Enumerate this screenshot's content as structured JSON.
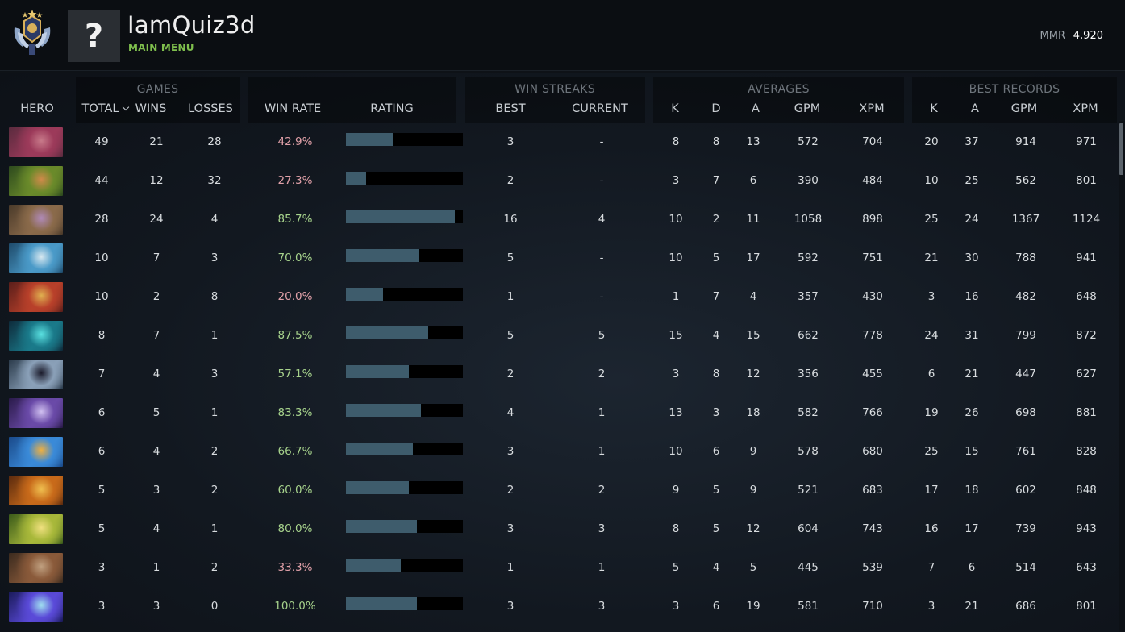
{
  "header": {
    "player_name": "IamQuiz3d",
    "menu_link": "MAIN MENU",
    "avatar_glyph": "?",
    "mmr_label": "MMR",
    "mmr_value": "4,920"
  },
  "groups": {
    "games": "GAMES",
    "win_streaks": "WIN STREAKS",
    "averages": "AVERAGES",
    "best_records": "BEST RECORDS"
  },
  "columns": {
    "hero": "HERO",
    "total": "TOTAL",
    "wins": "WINS",
    "losses": "LOSSES",
    "win_rate": "WIN RATE",
    "rating": "RATING",
    "best": "BEST",
    "current": "CURRENT",
    "avg_k": "K",
    "avg_d": "D",
    "avg_a": "A",
    "avg_gpm": "GPM",
    "avg_xpm": "XPM",
    "best_k": "K",
    "best_a": "A",
    "best_gpm": "GPM",
    "best_xpm": "XPM"
  },
  "sort_icon": "chevron-down-icon",
  "colors": {
    "win_rate_good": "#a7d38c",
    "win_rate_bad": "#e0a0a8",
    "rating_bar": "#3e5c6c",
    "menu_link": "#7fbf4d"
  },
  "rows": [
    {
      "hero_icon": "hero-portrait-1",
      "palette": [
        "#5a2b3e",
        "#9c3a5a",
        "#c87a8a"
      ],
      "total": "49",
      "wins": "21",
      "losses": "28",
      "win_rate": "42.9%",
      "rating": 0.4,
      "good": false,
      "best": "3",
      "current": "-",
      "k": "8",
      "d": "8",
      "a": "13",
      "gpm": "572",
      "xpm": "704",
      "bk": "20",
      "ba": "37",
      "bgpm": "914",
      "bxpm": "971"
    },
    {
      "hero_icon": "hero-portrait-2",
      "palette": [
        "#2d4a1e",
        "#6a8a2a",
        "#d08a4a"
      ],
      "total": "44",
      "wins": "12",
      "losses": "32",
      "win_rate": "27.3%",
      "rating": 0.17,
      "good": false,
      "best": "2",
      "current": "-",
      "k": "3",
      "d": "7",
      "a": "6",
      "gpm": "390",
      "xpm": "484",
      "bk": "10",
      "ba": "25",
      "bgpm": "562",
      "bxpm": "801"
    },
    {
      "hero_icon": "hero-portrait-3",
      "palette": [
        "#4a3a2a",
        "#8a6a4a",
        "#b08ab8"
      ],
      "total": "28",
      "wins": "24",
      "losses": "4",
      "win_rate": "85.7%",
      "rating": 0.93,
      "good": true,
      "best": "16",
      "current": "4",
      "k": "10",
      "d": "2",
      "a": "11",
      "gpm": "1058",
      "xpm": "898",
      "bk": "25",
      "ba": "24",
      "bgpm": "1367",
      "bxpm": "1124"
    },
    {
      "hero_icon": "hero-portrait-4",
      "palette": [
        "#1e4a6a",
        "#4a9ac8",
        "#d8e8f0"
      ],
      "total": "10",
      "wins": "7",
      "losses": "3",
      "win_rate": "70.0%",
      "rating": 0.63,
      "good": true,
      "best": "5",
      "current": "-",
      "k": "10",
      "d": "5",
      "a": "17",
      "gpm": "592",
      "xpm": "751",
      "bk": "21",
      "ba": "30",
      "bgpm": "788",
      "bxpm": "941"
    },
    {
      "hero_icon": "hero-portrait-5",
      "palette": [
        "#5a1e1a",
        "#b8402a",
        "#e0b050"
      ],
      "total": "10",
      "wins": "2",
      "losses": "8",
      "win_rate": "20.0%",
      "rating": 0.32,
      "good": false,
      "best": "1",
      "current": "-",
      "k": "1",
      "d": "7",
      "a": "4",
      "gpm": "357",
      "xpm": "430",
      "bk": "3",
      "ba": "16",
      "bgpm": "482",
      "bxpm": "648"
    },
    {
      "hero_icon": "hero-portrait-6",
      "palette": [
        "#0e2a3a",
        "#1a7a8a",
        "#5ae0e0"
      ],
      "total": "8",
      "wins": "7",
      "losses": "1",
      "win_rate": "87.5%",
      "rating": 0.7,
      "good": true,
      "best": "5",
      "current": "5",
      "k": "15",
      "d": "4",
      "a": "15",
      "gpm": "662",
      "xpm": "778",
      "bk": "24",
      "ba": "31",
      "bgpm": "799",
      "bxpm": "872"
    },
    {
      "hero_icon": "hero-portrait-7",
      "palette": [
        "#2a3a4a",
        "#8aa0b8",
        "#1a1a2a"
      ],
      "total": "7",
      "wins": "4",
      "losses": "3",
      "win_rate": "57.1%",
      "rating": 0.54,
      "good": true,
      "best": "2",
      "current": "2",
      "k": "3",
      "d": "8",
      "a": "12",
      "gpm": "356",
      "xpm": "455",
      "bk": "6",
      "ba": "21",
      "bgpm": "447",
      "bxpm": "627"
    },
    {
      "hero_icon": "hero-portrait-8",
      "palette": [
        "#2a1a4a",
        "#6a4aa8",
        "#d0c0f0"
      ],
      "total": "6",
      "wins": "5",
      "losses": "1",
      "win_rate": "83.3%",
      "rating": 0.64,
      "good": true,
      "best": "4",
      "current": "1",
      "k": "13",
      "d": "3",
      "a": "18",
      "gpm": "582",
      "xpm": "766",
      "bk": "19",
      "ba": "26",
      "bgpm": "698",
      "bxpm": "881"
    },
    {
      "hero_icon": "hero-portrait-9",
      "palette": [
        "#1a4a8a",
        "#3a8ad8",
        "#f0b040"
      ],
      "total": "6",
      "wins": "4",
      "losses": "2",
      "win_rate": "66.7%",
      "rating": 0.57,
      "good": true,
      "best": "3",
      "current": "1",
      "k": "10",
      "d": "6",
      "a": "9",
      "gpm": "578",
      "xpm": "680",
      "bk": "25",
      "ba": "15",
      "bgpm": "761",
      "bxpm": "828"
    },
    {
      "hero_icon": "hero-portrait-10",
      "palette": [
        "#5a2a0e",
        "#c86a1a",
        "#f0c050"
      ],
      "total": "5",
      "wins": "3",
      "losses": "2",
      "win_rate": "60.0%",
      "rating": 0.54,
      "good": true,
      "best": "2",
      "current": "2",
      "k": "9",
      "d": "5",
      "a": "9",
      "gpm": "521",
      "xpm": "683",
      "bk": "17",
      "ba": "18",
      "bgpm": "602",
      "bxpm": "848"
    },
    {
      "hero_icon": "hero-portrait-11",
      "palette": [
        "#3a5a1a",
        "#a8b83a",
        "#f0e080"
      ],
      "total": "5",
      "wins": "4",
      "losses": "1",
      "win_rate": "80.0%",
      "rating": 0.61,
      "good": true,
      "best": "3",
      "current": "3",
      "k": "8",
      "d": "5",
      "a": "12",
      "gpm": "604",
      "xpm": "743",
      "bk": "16",
      "ba": "17",
      "bgpm": "739",
      "bxpm": "943"
    },
    {
      "hero_icon": "hero-portrait-12",
      "palette": [
        "#3a2a1e",
        "#8a5a3a",
        "#c0a080"
      ],
      "total": "3",
      "wins": "1",
      "losses": "2",
      "win_rate": "33.3%",
      "rating": 0.47,
      "good": false,
      "best": "1",
      "current": "1",
      "k": "5",
      "d": "4",
      "a": "5",
      "gpm": "445",
      "xpm": "539",
      "bk": "7",
      "ba": "6",
      "bgpm": "514",
      "bxpm": "643"
    },
    {
      "hero_icon": "hero-portrait-13",
      "palette": [
        "#1a1a5a",
        "#5a4ad8",
        "#a0e0f0"
      ],
      "total": "3",
      "wins": "3",
      "losses": "0",
      "win_rate": "100.0%",
      "rating": 0.61,
      "good": true,
      "best": "3",
      "current": "3",
      "k": "3",
      "d": "6",
      "a": "19",
      "gpm": "581",
      "xpm": "710",
      "bk": "3",
      "ba": "21",
      "bgpm": "686",
      "bxpm": "801"
    }
  ]
}
